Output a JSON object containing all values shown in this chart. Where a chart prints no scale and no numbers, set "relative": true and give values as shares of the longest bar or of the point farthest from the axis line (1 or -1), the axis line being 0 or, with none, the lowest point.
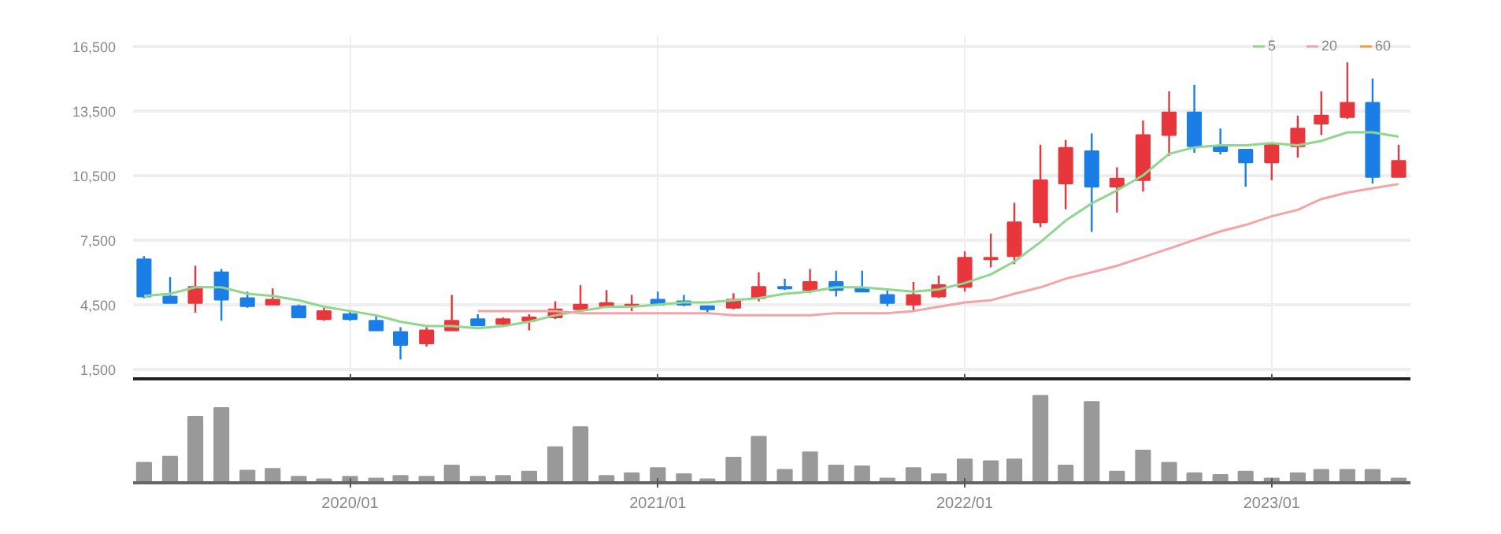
{
  "chart_data": [
    {
      "type": "candlestick",
      "x": [
        "2019-05",
        "2019-06",
        "2019-07",
        "2019-08",
        "2019-09",
        "2019-10",
        "2019-11",
        "2019-12",
        "2020-01",
        "2020-02",
        "2020-03",
        "2020-04",
        "2020-05",
        "2020-06",
        "2020-07",
        "2020-08",
        "2020-09",
        "2020-10",
        "2020-11",
        "2020-12",
        "2021-01",
        "2021-02",
        "2021-03",
        "2021-04",
        "2021-05",
        "2021-06",
        "2021-07",
        "2021-08",
        "2021-09",
        "2021-10",
        "2021-11",
        "2021-12",
        "2022-01",
        "2022-02",
        "2022-03",
        "2022-04",
        "2022-05",
        "2022-06",
        "2022-07",
        "2022-08",
        "2022-09",
        "2022-10",
        "2022-11",
        "2022-12",
        "2023-01",
        "2023-02",
        "2023-03",
        "2023-04",
        "2023-05",
        "2023-06"
      ],
      "ohlc": [
        [
          6600,
          6750,
          4800,
          4875
        ],
        [
          4875,
          5775,
          4575,
          4575
        ],
        [
          4575,
          6300,
          4125,
          5325
        ],
        [
          6000,
          6150,
          3750,
          4725
        ],
        [
          4800,
          5100,
          4350,
          4425
        ],
        [
          4500,
          5250,
          4500,
          4725
        ],
        [
          4425,
          4500,
          3900,
          3900
        ],
        [
          3825,
          4350,
          3750,
          4200
        ],
        [
          4050,
          4200,
          3750,
          3825
        ],
        [
          3750,
          4050,
          3300,
          3300
        ],
        [
          3225,
          3450,
          1950,
          2625
        ],
        [
          2700,
          3450,
          2550,
          3300
        ],
        [
          3300,
          4950,
          3300,
          3750
        ],
        [
          3825,
          4050,
          3525,
          3525
        ],
        [
          3600,
          3900,
          3525,
          3825
        ],
        [
          3750,
          4050,
          3300,
          3900
        ],
        [
          3900,
          4650,
          3825,
          4275
        ],
        [
          4275,
          5400,
          4275,
          4500
        ],
        [
          4425,
          5175,
          4425,
          4575
        ],
        [
          4425,
          4950,
          4200,
          4500
        ],
        [
          4725,
          5100,
          4500,
          4500
        ],
        [
          4650,
          4950,
          4425,
          4500
        ],
        [
          4425,
          4425,
          4050,
          4275
        ],
        [
          4350,
          5025,
          4275,
          4725
        ],
        [
          4800,
          6000,
          4650,
          5325
        ],
        [
          5325,
          5700,
          5175,
          5250
        ],
        [
          5175,
          6150,
          5025,
          5550
        ],
        [
          5550,
          6075,
          4875,
          5175
        ],
        [
          5250,
          6075,
          5100,
          5100
        ],
        [
          4950,
          5250,
          4425,
          4575
        ],
        [
          4500,
          5550,
          4200,
          4950
        ],
        [
          4875,
          5850,
          4800,
          5400
        ],
        [
          5325,
          6975,
          5100,
          6675
        ],
        [
          6600,
          7800,
          6225,
          6675
        ],
        [
          6750,
          9225,
          6375,
          8325
        ],
        [
          8325,
          11925,
          8100,
          10275
        ],
        [
          10125,
          12150,
          8925,
          11775
        ],
        [
          11625,
          12450,
          7875,
          9975
        ],
        [
          9975,
          10875,
          8775,
          10350
        ],
        [
          10275,
          13050,
          9750,
          12375
        ],
        [
          12375,
          14400,
          11400,
          13425
        ],
        [
          13425,
          14700,
          11550,
          11850
        ],
        [
          11850,
          12675,
          11475,
          11625
        ],
        [
          11700,
          11700,
          9975,
          11100
        ],
        [
          11100,
          11925,
          10275,
          11925
        ],
        [
          11850,
          13275,
          11325,
          12675
        ],
        [
          12900,
          14400,
          12375,
          13275
        ],
        [
          13200,
          15750,
          13125,
          13875
        ],
        [
          13875,
          15000,
          10125,
          10425
        ],
        [
          10425,
          11925,
          10425,
          11175
        ]
      ],
      "colors": [
        "#1a7ee6",
        "#1a7ee6",
        "#e8373c",
        "#1a7ee6",
        "#1a7ee6",
        "#e8373c",
        "#1a7ee6",
        "#e8373c",
        "#1a7ee6",
        "#1a7ee6",
        "#1a7ee6",
        "#e8373c",
        "#e8373c",
        "#1a7ee6",
        "#e8373c",
        "#e8373c",
        "#e8373c",
        "#e8373c",
        "#e8373c",
        "#e8373c",
        "#1a7ee6",
        "#1a7ee6",
        "#1a7ee6",
        "#e8373c",
        "#e8373c",
        "#1a7ee6",
        "#e8373c",
        "#1a7ee6",
        "#1a7ee6",
        "#1a7ee6",
        "#e8373c",
        "#e8373c",
        "#e8373c",
        "#e8373c",
        "#e8373c",
        "#e8373c",
        "#e8373c",
        "#1a7ee6",
        "#e8373c",
        "#e8373c",
        "#e8373c",
        "#1a7ee6",
        "#1a7ee6",
        "#1a7ee6",
        "#e8373c",
        "#e8373c",
        "#e8373c",
        "#e8373c",
        "#1a7ee6",
        "#e8373c"
      ],
      "series": [
        {
          "type": "line",
          "name": "5",
          "color": "#8fd68f",
          "values": [
            4900,
            5000,
            5300,
            5300,
            5000,
            4900,
            4700,
            4400,
            4200,
            4000,
            3700,
            3500,
            3500,
            3400,
            3500,
            3700,
            4000,
            4200,
            4400,
            4400,
            4500,
            4600,
            4600,
            4700,
            4800,
            5000,
            5100,
            5300,
            5300,
            5200,
            5100,
            5200,
            5500,
            5900,
            6500,
            7400,
            8400,
            9200,
            9800,
            10500,
            11500,
            11800,
            11900,
            11900,
            12000,
            11900,
            12100,
            12500,
            12500,
            12300
          ]
        },
        {
          "type": "line",
          "name": "20",
          "color": "#f4a3a6",
          "values": [
            null,
            null,
            null,
            null,
            null,
            null,
            null,
            null,
            null,
            null,
            null,
            null,
            null,
            4200,
            4200,
            4200,
            4200,
            4100,
            4100,
            4100,
            4100,
            4100,
            4100,
            4000,
            4000,
            4000,
            4000,
            4100,
            4100,
            4100,
            4200,
            4400,
            4600,
            4700,
            5000,
            5300,
            5700,
            6000,
            6300,
            6700,
            7100,
            7500,
            7900,
            8200,
            8600,
            8900,
            9400,
            9700,
            9900,
            10100
          ]
        },
        {
          "type": "line",
          "name": "60",
          "color": "#f5a030",
          "values": [
            null,
            null,
            null,
            null,
            null,
            null,
            null,
            null,
            null,
            null,
            null,
            null,
            null,
            null,
            null,
            null,
            null,
            null,
            null,
            null,
            null,
            null,
            null,
            null,
            null,
            null,
            null,
            null,
            null,
            null,
            null,
            null,
            null,
            null,
            null,
            null,
            null,
            null,
            null,
            null,
            null,
            null,
            null,
            null,
            null,
            null,
            null,
            null,
            null,
            null
          ]
        }
      ],
      "xlim": [
        "2019-04-18",
        "2023-06-15"
      ],
      "ylim": [
        1050,
        17000
      ],
      "yticks": [
        {
          "value": 1500,
          "label": "1,500"
        },
        {
          "value": 4500,
          "label": "4,500"
        },
        {
          "value": 7500,
          "label": "7,500"
        },
        {
          "value": 10500,
          "label": "10,500"
        },
        {
          "value": 13500,
          "label": "13,500"
        },
        {
          "value": 16500,
          "label": "16,500"
        }
      ],
      "xticks": [
        {
          "value": "2020-01",
          "label": null
        },
        {
          "value": "2021-01",
          "label": null
        },
        {
          "value": "2022-01",
          "label": null
        },
        {
          "value": "2023-01",
          "label": null
        }
      ],
      "tick_labels": "y",
      "grid": true,
      "legend": "top right"
    },
    {
      "type": "bar",
      "relative": true,
      "color": "#999999",
      "x": [
        "2019-05",
        "2019-06",
        "2019-07",
        "2019-08",
        "2019-09",
        "2019-10",
        "2019-11",
        "2019-12",
        "2020-01",
        "2020-02",
        "2020-03",
        "2020-04",
        "2020-05",
        "2020-06",
        "2020-07",
        "2020-08",
        "2020-09",
        "2020-10",
        "2020-11",
        "2020-12",
        "2021-01",
        "2021-02",
        "2021-03",
        "2021-04",
        "2021-05",
        "2021-06",
        "2021-07",
        "2021-08",
        "2021-09",
        "2021-10",
        "2021-11",
        "2021-12",
        "2022-01",
        "2022-02",
        "2022-03",
        "2022-04",
        "2022-05",
        "2022-06",
        "2022-07",
        "2022-08",
        "2022-09",
        "2022-10",
        "2022-11",
        "2022-12",
        "2023-01",
        "2023-02",
        "2023-03",
        "2023-04",
        "2023-05",
        "2023-06"
      ],
      "values": [
        0.23,
        0.3,
        0.76,
        0.86,
        0.14,
        0.16,
        0.07,
        0.04,
        0.07,
        0.05,
        0.08,
        0.07,
        0.2,
        0.07,
        0.08,
        0.13,
        0.41,
        0.64,
        0.08,
        0.11,
        0.17,
        0.1,
        0.04,
        0.29,
        0.53,
        0.15,
        0.35,
        0.2,
        0.19,
        0.05,
        0.17,
        0.1,
        0.27,
        0.25,
        0.27,
        1,
        0.2,
        0.93,
        0.13,
        0.37,
        0.23,
        0.11,
        0.09,
        0.13,
        0.05,
        0.11,
        0.15,
        0.15,
        0.15,
        0.05
      ],
      "xlim": [
        "2019-04-18",
        "2023-06-15"
      ],
      "xticks": [
        {
          "value": "2020-01",
          "label": "2020/01"
        },
        {
          "value": "2021-01",
          "label": "2021/01"
        },
        {
          "value": "2022-01",
          "label": "2022/01"
        },
        {
          "value": "2023-01",
          "label": "2023/01"
        }
      ],
      "tick_labels": "x",
      "grid": false
    }
  ]
}
